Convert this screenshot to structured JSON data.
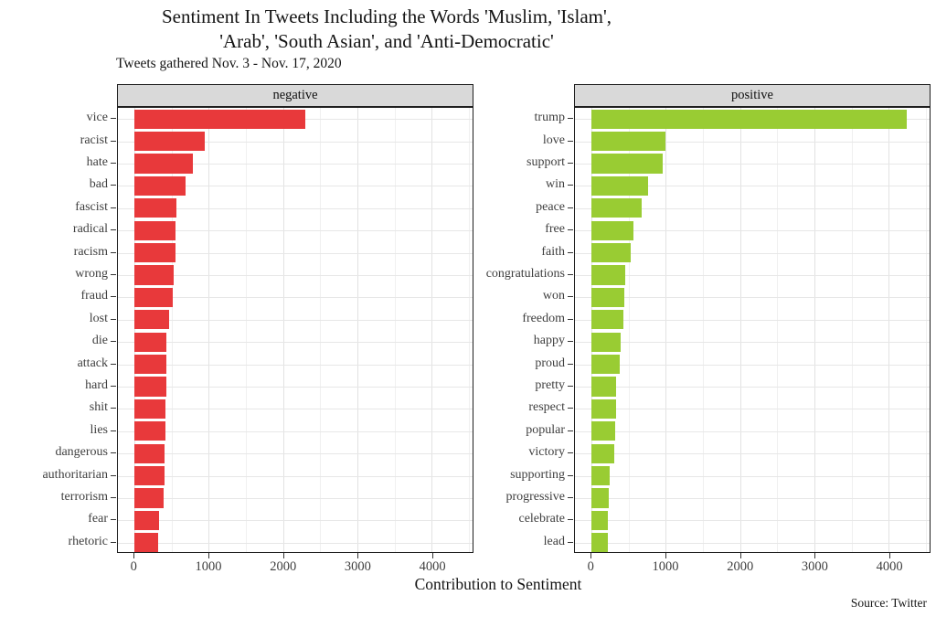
{
  "chart_data": {
    "type": "bar",
    "orientation": "horizontal",
    "title": "Sentiment In Tweets Including the Words 'Muslim, 'Islam',\n'Arab', 'South Asian', and 'Anti-Democratic'",
    "subtitle": "Tweets gathered Nov. 3 - Nov. 17, 2020",
    "xlabel": "Contribution to Sentiment",
    "caption": "Source: Twitter",
    "xticks": [
      0,
      1000,
      2000,
      3000,
      4000
    ],
    "minor_xticks": [
      500,
      1500,
      2500,
      3500,
      4500
    ],
    "xlim": [
      -230,
      4550
    ],
    "grid": true,
    "legend": "none",
    "strip_bg": "#D9D9D9",
    "facets": [
      {
        "label": "negative",
        "color": "#E8393B",
        "categories": [
          "vice",
          "racist",
          "hate",
          "bad",
          "fascist",
          "radical",
          "racism",
          "wrong",
          "fraud",
          "lost",
          "die",
          "attack",
          "hard",
          "shit",
          "lies",
          "dangerous",
          "authoritarian",
          "terrorism",
          "fear",
          "rhetoric"
        ],
        "values": [
          2300,
          950,
          790,
          690,
          565,
          555,
          550,
          525,
          520,
          465,
          430,
          425,
          422,
          415,
          410,
          408,
          405,
          395,
          330,
          312
        ]
      },
      {
        "label": "positive",
        "color": "#99CC33",
        "categories": [
          "trump",
          "love",
          "support",
          "win",
          "peace",
          "free",
          "faith",
          "congratulations",
          "won",
          "freedom",
          "happy",
          "proud",
          "pretty",
          "respect",
          "popular",
          "victory",
          "supporting",
          "progressive",
          "celebrate",
          "lead"
        ],
        "values": [
          4240,
          990,
          960,
          765,
          680,
          565,
          530,
          450,
          435,
          430,
          395,
          385,
          328,
          324,
          320,
          305,
          242,
          232,
          222,
          218
        ]
      }
    ]
  }
}
